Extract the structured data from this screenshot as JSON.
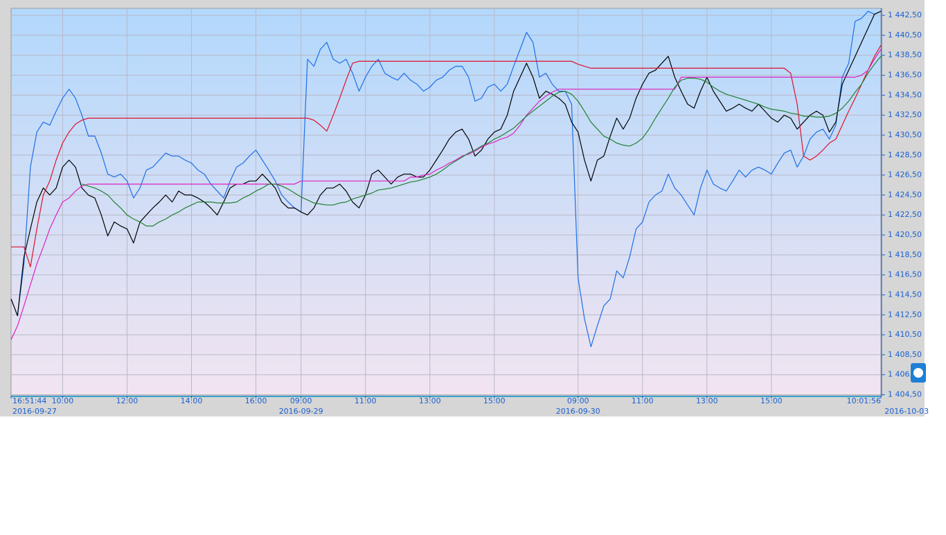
{
  "chart_data": {
    "type": "line",
    "categories": [
      "16:51:44",
      null,
      null,
      null,
      null,
      null,
      null,
      null,
      "10:00",
      null,
      null,
      null,
      null,
      null,
      null,
      null,
      null,
      null,
      "12:00",
      null,
      null,
      null,
      null,
      null,
      null,
      null,
      null,
      null,
      "14:00",
      null,
      null,
      null,
      null,
      null,
      null,
      null,
      null,
      null,
      "16:00",
      null,
      null,
      null,
      null,
      null,
      null,
      "09:00",
      null,
      null,
      null,
      null,
      null,
      null,
      null,
      null,
      null,
      "11:00",
      null,
      null,
      null,
      null,
      null,
      null,
      null,
      null,
      null,
      "13:00",
      null,
      null,
      null,
      null,
      null,
      null,
      null,
      null,
      null,
      "15:00",
      null,
      null,
      null,
      null,
      null,
      null,
      null,
      null,
      null,
      null,
      null,
      null,
      "09:00",
      null,
      null,
      null,
      null,
      null,
      null,
      null,
      null,
      null,
      "11:00",
      null,
      null,
      null,
      null,
      null,
      null,
      null,
      null,
      null,
      "13:00",
      null,
      null,
      null,
      null,
      null,
      null,
      null,
      null,
      null,
      "15:00",
      null,
      null,
      null,
      null,
      null,
      null,
      null,
      null,
      null,
      null,
      null,
      null,
      null,
      null,
      null,
      null,
      "10:01:56"
    ],
    "dates": [
      "2016-09-27",
      null,
      null,
      null,
      null,
      null,
      null,
      null,
      null,
      null,
      null,
      null,
      null,
      null,
      null,
      null,
      null,
      null,
      null,
      null,
      null,
      null,
      null,
      null,
      null,
      null,
      null,
      null,
      null,
      null,
      null,
      null,
      null,
      null,
      null,
      null,
      null,
      null,
      null,
      null,
      null,
      null,
      null,
      null,
      null,
      "2016-09-29",
      null,
      null,
      null,
      null,
      null,
      null,
      null,
      null,
      null,
      null,
      null,
      null,
      null,
      null,
      null,
      null,
      null,
      null,
      null,
      null,
      null,
      null,
      null,
      null,
      null,
      null,
      null,
      null,
      null,
      null,
      null,
      null,
      null,
      null,
      null,
      null,
      null,
      null,
      null,
      null,
      null,
      null,
      "2016-09-30",
      null,
      null,
      null,
      null,
      null,
      null,
      null,
      null,
      null,
      null,
      null,
      null,
      null,
      null,
      null,
      null,
      null,
      null,
      null,
      null,
      null,
      null,
      null,
      null,
      null,
      null,
      null,
      null,
      null,
      null,
      null,
      null,
      null,
      null,
      null,
      null,
      null,
      null,
      null,
      null,
      null,
      null,
      null,
      null,
      null,
      null,
      null,
      null,
      null,
      null,
      "2016-10-03"
    ],
    "series": [
      {
        "color": "#1c6fe6",
        "values": [
          1414.1,
          1412.4,
          1417.6,
          1427.3,
          1430.8,
          1431.8,
          1431.5,
          1432.9,
          1434.2,
          1435.1,
          1434.2,
          1432.5,
          1430.4,
          1430.4,
          1428.7,
          1426.6,
          1426.3,
          1426.6,
          1425.9,
          1424.2,
          1425.2,
          1427.0,
          1427.3,
          1428.0,
          1428.7,
          1428.4,
          1428.4,
          1428.0,
          1427.7,
          1427.0,
          1426.6,
          1425.6,
          1424.9,
          1424.2,
          1425.9,
          1427.3,
          1427.7,
          1428.4,
          1429.0,
          1428.0,
          1427.0,
          1425.9,
          1424.5,
          1423.8,
          1423.2,
          1422.8,
          1438.1,
          1437.4,
          1439.1,
          1439.8,
          1438.1,
          1437.7,
          1438.1,
          1436.7,
          1434.9,
          1436.3,
          1437.4,
          1438.1,
          1436.7,
          1436.3,
          1436.0,
          1436.7,
          1436.0,
          1435.6,
          1434.9,
          1435.3,
          1436.0,
          1436.3,
          1437.0,
          1437.4,
          1437.4,
          1436.3,
          1433.9,
          1434.2,
          1435.3,
          1435.6,
          1434.9,
          1435.6,
          1437.4,
          1439.1,
          1440.8,
          1439.8,
          1436.3,
          1436.7,
          1435.6,
          1434.9,
          1434.9,
          1433.6,
          1416.2,
          1412.1,
          1409.3,
          1411.4,
          1413.4,
          1414.1,
          1416.9,
          1416.2,
          1418.3,
          1421.1,
          1421.8,
          1423.8,
          1424.5,
          1424.9,
          1426.6,
          1425.2,
          1424.5,
          1423.5,
          1422.5,
          1425.2,
          1427.0,
          1425.6,
          1425.2,
          1424.9,
          1425.9,
          1427.0,
          1426.3,
          1427.0,
          1427.3,
          1427.0,
          1426.6,
          1427.7,
          1428.7,
          1429.0,
          1427.3,
          1428.4,
          1430.1,
          1430.8,
          1431.1,
          1430.1,
          1431.5,
          1436.3,
          1437.7,
          1441.9,
          1442.2,
          1442.9,
          1442.6,
          1442.9
        ]
      },
      {
        "color": "#000000",
        "values": [
          1414.1,
          1412.4,
          1418.3,
          1421.1,
          1423.8,
          1425.2,
          1424.5,
          1425.2,
          1427.3,
          1428.0,
          1427.3,
          1425.2,
          1424.5,
          1424.2,
          1422.5,
          1420.4,
          1421.8,
          1421.4,
          1421.1,
          1419.7,
          1421.8,
          1422.5,
          1423.2,
          1423.8,
          1424.5,
          1423.8,
          1424.9,
          1424.5,
          1424.5,
          1424.2,
          1423.8,
          1423.2,
          1422.5,
          1423.8,
          1425.2,
          1425.6,
          1425.6,
          1425.9,
          1425.9,
          1426.6,
          1425.9,
          1425.2,
          1423.8,
          1423.2,
          1423.2,
          1422.8,
          1422.5,
          1423.2,
          1424.5,
          1425.2,
          1425.2,
          1425.6,
          1424.9,
          1423.8,
          1423.2,
          1424.5,
          1426.6,
          1427.0,
          1426.3,
          1425.6,
          1426.3,
          1426.6,
          1426.6,
          1426.3,
          1426.3,
          1427.0,
          1428.0,
          1429.0,
          1430.1,
          1430.8,
          1431.1,
          1430.1,
          1428.4,
          1429.0,
          1430.1,
          1430.8,
          1431.1,
          1432.5,
          1434.9,
          1436.3,
          1437.7,
          1436.3,
          1434.2,
          1434.9,
          1434.6,
          1434.2,
          1433.6,
          1431.8,
          1430.8,
          1428.0,
          1425.9,
          1428.0,
          1428.4,
          1430.4,
          1432.2,
          1431.1,
          1432.2,
          1434.2,
          1435.6,
          1436.7,
          1437.0,
          1437.7,
          1438.4,
          1436.3,
          1434.9,
          1433.6,
          1433.2,
          1434.9,
          1436.3,
          1434.9,
          1433.9,
          1432.9,
          1433.2,
          1433.6,
          1433.2,
          1432.9,
          1433.6,
          1432.9,
          1432.2,
          1431.8,
          1432.5,
          1432.2,
          1431.1,
          1431.8,
          1432.5,
          1432.9,
          1432.5,
          1430.8,
          1431.8,
          1435.6,
          1437.0,
          1438.4,
          1439.8,
          1441.2,
          1442.6,
          1442.9
        ]
      },
      {
        "color": "#e0102a",
        "values": [
          1419.3,
          1419.3,
          1419.3,
          1417.3,
          1421.1,
          1424.5,
          1425.9,
          1428.0,
          1429.7,
          1430.8,
          1431.6,
          1432.0,
          1432.2,
          1432.2,
          1432.2,
          1432.2,
          1432.2,
          1432.2,
          1432.2,
          1432.2,
          1432.2,
          1432.2,
          1432.2,
          1432.2,
          1432.2,
          1432.2,
          1432.2,
          1432.2,
          1432.2,
          1432.2,
          1432.2,
          1432.2,
          1432.2,
          1432.2,
          1432.2,
          1432.2,
          1432.2,
          1432.2,
          1432.2,
          1432.2,
          1432.2,
          1432.2,
          1432.2,
          1432.2,
          1432.2,
          1432.2,
          1432.2,
          1432.0,
          1431.5,
          1430.9,
          1432.5,
          1434.2,
          1436.0,
          1437.7,
          1437.9,
          1437.9,
          1437.9,
          1437.9,
          1437.9,
          1437.9,
          1437.9,
          1437.9,
          1437.9,
          1437.9,
          1437.9,
          1437.9,
          1437.9,
          1437.9,
          1437.9,
          1437.9,
          1437.9,
          1437.9,
          1437.9,
          1437.9,
          1437.9,
          1437.9,
          1437.9,
          1437.9,
          1437.9,
          1437.9,
          1437.9,
          1437.9,
          1437.9,
          1437.9,
          1437.9,
          1437.9,
          1437.9,
          1437.9,
          1437.6,
          1437.4,
          1437.2,
          1437.2,
          1437.2,
          1437.2,
          1437.2,
          1437.2,
          1437.2,
          1437.2,
          1437.2,
          1437.2,
          1437.2,
          1437.2,
          1437.2,
          1437.2,
          1437.2,
          1437.2,
          1437.2,
          1437.2,
          1437.2,
          1437.2,
          1437.2,
          1437.2,
          1437.2,
          1437.2,
          1437.2,
          1437.2,
          1437.2,
          1437.2,
          1437.2,
          1437.2,
          1437.2,
          1436.7,
          1433.6,
          1428.4,
          1428.0,
          1428.4,
          1429.0,
          1429.7,
          1430.1,
          1431.5,
          1432.9,
          1434.2,
          1435.6,
          1437.0,
          1438.4,
          1439.5
        ]
      },
      {
        "color": "#e020c0",
        "values": [
          1410.0,
          1411.4,
          1413.4,
          1415.5,
          1417.6,
          1419.3,
          1421.1,
          1422.5,
          1423.8,
          1424.2,
          1424.9,
          1425.4,
          1425.6,
          1425.6,
          1425.6,
          1425.6,
          1425.6,
          1425.6,
          1425.6,
          1425.6,
          1425.6,
          1425.6,
          1425.6,
          1425.6,
          1425.6,
          1425.6,
          1425.6,
          1425.6,
          1425.6,
          1425.6,
          1425.6,
          1425.6,
          1425.6,
          1425.6,
          1425.6,
          1425.6,
          1425.6,
          1425.6,
          1425.6,
          1425.6,
          1425.6,
          1425.6,
          1425.6,
          1425.6,
          1425.6,
          1425.9,
          1425.9,
          1425.9,
          1425.9,
          1425.9,
          1425.9,
          1425.9,
          1425.9,
          1425.9,
          1425.9,
          1425.9,
          1425.9,
          1425.9,
          1425.9,
          1425.9,
          1425.9,
          1425.9,
          1426.3,
          1426.3,
          1426.5,
          1426.6,
          1427.0,
          1427.3,
          1427.7,
          1428.0,
          1428.4,
          1428.6,
          1428.9,
          1429.3,
          1429.6,
          1429.8,
          1430.1,
          1430.3,
          1430.7,
          1431.5,
          1432.5,
          1433.2,
          1433.9,
          1434.4,
          1434.8,
          1435.1,
          1435.1,
          1435.1,
          1435.1,
          1435.1,
          1435.1,
          1435.1,
          1435.1,
          1435.1,
          1435.1,
          1435.1,
          1435.1,
          1435.1,
          1435.1,
          1435.1,
          1435.1,
          1435.1,
          1435.1,
          1435.1,
          1436.3,
          1436.3,
          1436.3,
          1436.3,
          1436.3,
          1436.3,
          1436.3,
          1436.3,
          1436.3,
          1436.3,
          1436.3,
          1436.3,
          1436.3,
          1436.3,
          1436.3,
          1436.3,
          1436.3,
          1436.3,
          1436.3,
          1436.3,
          1436.3,
          1436.3,
          1436.3,
          1436.3,
          1436.3,
          1436.3,
          1436.3,
          1436.3,
          1436.5,
          1437.0,
          1438.1,
          1439.1
        ]
      },
      {
        "color": "#208030",
        "values": [
          null,
          null,
          null,
          null,
          null,
          null,
          null,
          null,
          null,
          null,
          null,
          1425.6,
          1425.4,
          1425.2,
          1424.9,
          1424.5,
          1423.8,
          1423.2,
          1422.5,
          1422.1,
          1421.8,
          1421.4,
          1421.4,
          1421.8,
          1422.1,
          1422.5,
          1422.8,
          1423.2,
          1423.5,
          1423.8,
          1423.8,
          1423.8,
          1423.7,
          1423.7,
          1423.7,
          1423.8,
          1424.2,
          1424.5,
          1424.9,
          1425.2,
          1425.6,
          1425.6,
          1425.4,
          1425.1,
          1424.7,
          1424.3,
          1424.0,
          1423.7,
          1423.6,
          1423.5,
          1423.5,
          1423.7,
          1423.8,
          1424.1,
          1424.3,
          1424.5,
          1424.7,
          1425.0,
          1425.1,
          1425.2,
          1425.4,
          1425.6,
          1425.8,
          1425.9,
          1426.1,
          1426.3,
          1426.6,
          1427.0,
          1427.5,
          1427.9,
          1428.3,
          1428.7,
          1429.0,
          1429.4,
          1429.7,
          1430.1,
          1430.4,
          1430.8,
          1431.2,
          1431.8,
          1432.4,
          1432.9,
          1433.4,
          1433.9,
          1434.4,
          1434.8,
          1434.9,
          1434.6,
          1433.9,
          1432.9,
          1431.8,
          1431.1,
          1430.4,
          1430.1,
          1429.7,
          1429.5,
          1429.4,
          1429.7,
          1430.2,
          1431.1,
          1432.2,
          1433.2,
          1434.2,
          1435.3,
          1436.0,
          1436.2,
          1436.2,
          1436.1,
          1435.8,
          1435.3,
          1434.9,
          1434.6,
          1434.4,
          1434.2,
          1434.0,
          1433.8,
          1433.6,
          1433.3,
          1433.1,
          1433.0,
          1432.9,
          1432.7,
          1432.6,
          1432.4,
          1432.4,
          1432.3,
          1432.3,
          1432.4,
          1432.7,
          1433.2,
          1433.9,
          1434.8,
          1435.6,
          1436.7,
          1437.6,
          1438.4
        ]
      }
    ],
    "ylim": [
      1404.4,
      1443.2
    ],
    "yticks": [
      {
        "value": 1404.5,
        "label": "1 404,50"
      },
      {
        "value": 1406.5,
        "label": "1 406,50"
      },
      {
        "value": 1408.5,
        "label": "1 408,50"
      },
      {
        "value": 1410.5,
        "label": "1 410,50"
      },
      {
        "value": 1412.5,
        "label": "1 412,50"
      },
      {
        "value": 1414.5,
        "label": "1 414,50"
      },
      {
        "value": 1416.5,
        "label": "1 416,50"
      },
      {
        "value": 1418.5,
        "label": "1 418,50"
      },
      {
        "value": 1420.5,
        "label": "1 420,50"
      },
      {
        "value": 1422.5,
        "label": "1 422,50"
      },
      {
        "value": 1424.5,
        "label": "1 424,50"
      },
      {
        "value": 1426.5,
        "label": "1 426,50"
      },
      {
        "value": 1428.5,
        "label": "1 428,50"
      },
      {
        "value": 1430.5,
        "label": "1 430,50"
      },
      {
        "value": 1432.5,
        "label": "1 432,50"
      },
      {
        "value": 1434.5,
        "label": "1 434,50"
      },
      {
        "value": 1436.5,
        "label": "1 436,50"
      },
      {
        "value": 1438.5,
        "label": "1 438,50"
      },
      {
        "value": 1440.5,
        "label": "1 440,50"
      },
      {
        "value": 1442.5,
        "label": "1 442,50"
      }
    ],
    "grid": true
  }
}
